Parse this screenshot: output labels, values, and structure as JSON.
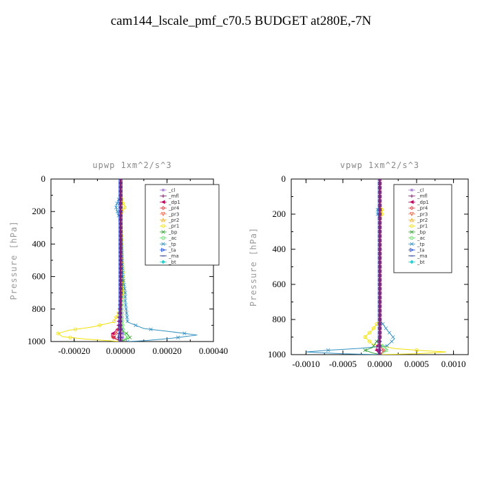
{
  "title": "cam144_lscale_pmf_c70.5  BUDGET at280E,-7N",
  "colors": {
    "_cl": "#a070d0",
    "_mfl": "#802070",
    "_dp1": "#c00060",
    "_pr4": "#e04040",
    "_pr3": "#f06040",
    "_pr2": "#f0b020",
    "_pr1": "#f0e000",
    "_bp": "#30a030",
    "_ac": "#60e060",
    "_tp": "#3090c0",
    "_ta": "#2050e0",
    "_ma": "#203090",
    "_bt": "#20d0d0"
  },
  "chart_data": [
    {
      "type": "line",
      "title": "upwp  1xm^2/s^3",
      "ylabel": "Pressure [hPa]",
      "xlabel": "",
      "xlim": [
        -0.0003,
        0.0004
      ],
      "ylim": [
        1000,
        0
      ],
      "xticks": [
        -0.0002,
        0.0,
        0.0002,
        0.0004
      ],
      "xtick_labels": [
        "-0.00020",
        "0.00000",
        "0.00020",
        "0.00040"
      ],
      "yticks": [
        0,
        200,
        400,
        600,
        800,
        1000
      ],
      "ytick_labels": [
        "0",
        "200",
        "400",
        "600",
        "800",
        "1000"
      ],
      "legend": [
        "_cl",
        "_mfl",
        "_dp1",
        "_pr4",
        "_pr3",
        "_pr2",
        "_pr1",
        "_bp",
        "_ac",
        "_tp",
        "_ta",
        "_ma",
        "_bt"
      ],
      "legend_position": "top-right",
      "series": [
        {
          "name": "_pr1",
          "x": [
            0,
            0,
            1e-05,
            2e-05,
            1e-05,
            0,
            1e-05,
            1e-05,
            0,
            -3e-05,
            -0.00012,
            -0.00022,
            -0.00027,
            -0.00025,
            -0.00015,
            -5e-05,
            0
          ],
          "y": [
            0,
            100,
            150,
            170,
            190,
            230,
            600,
            700,
            800,
            880,
            910,
            930,
            950,
            970,
            985,
            995,
            1000
          ]
        },
        {
          "name": "_tp",
          "x": [
            0,
            0,
            -1e-05,
            -2e-05,
            -1e-05,
            0,
            1e-05,
            2e-05,
            2e-05,
            3e-05,
            0.0001,
            0.00022,
            0.00033,
            0.00022,
            0.0001,
            3e-05
          ],
          "y": [
            0,
            100,
            130,
            170,
            220,
            260,
            600,
            700,
            750,
            880,
            920,
            940,
            960,
            980,
            995,
            1000
          ]
        },
        {
          "name": "_bp",
          "x": [
            0,
            0,
            0,
            1e-05,
            3e-05,
            4e-05,
            2e-05,
            0
          ],
          "y": [
            0,
            500,
            900,
            935,
            955,
            975,
            990,
            1000
          ]
        },
        {
          "name": "_ac",
          "x": [
            0,
            0,
            1e-05,
            2e-05,
            3e-05,
            1e-05,
            0
          ],
          "y": [
            0,
            600,
            940,
            960,
            975,
            990,
            1000
          ]
        },
        {
          "name": "_dp1",
          "x": [
            0,
            0,
            -1e-05,
            -3e-05,
            -4e-05,
            -3e-05,
            -1e-05,
            0
          ],
          "y": [
            0,
            700,
            920,
            945,
            960,
            975,
            990,
            1000
          ]
        },
        {
          "name": "_pr4",
          "x": [
            0,
            0,
            -2e-05,
            -4e-05,
            -2e-05,
            0
          ],
          "y": [
            0,
            900,
            950,
            968,
            985,
            1000
          ]
        },
        {
          "name": "_mfl",
          "x": [
            0,
            0,
            -1e-05,
            -1e-05,
            0
          ],
          "y": [
            0,
            930,
            960,
            985,
            1000
          ]
        },
        {
          "name": "_cl",
          "x": [
            0,
            0,
            1e-05,
            1e-05,
            0
          ],
          "y": [
            0,
            900,
            950,
            980,
            1000
          ]
        },
        {
          "name": "_ta",
          "x": [
            0,
            0
          ],
          "y": [
            0,
            1000
          ]
        },
        {
          "name": "_ma",
          "x": [
            0,
            0
          ],
          "y": [
            0,
            1000
          ]
        }
      ]
    },
    {
      "type": "line",
      "title": "vpwp  1xm^2/s^3",
      "ylabel": "Pressure [hPa]",
      "xlabel": "",
      "xlim": [
        -0.0012,
        0.0012
      ],
      "ylim": [
        1000,
        0
      ],
      "xticks": [
        -0.001,
        -0.0005,
        0.0,
        0.0005,
        0.001
      ],
      "xtick_labels": [
        "-0.0010",
        "-0.0005",
        "0.0000",
        "0.0005",
        "0.0010"
      ],
      "yticks": [
        0,
        200,
        400,
        600,
        800,
        1000
      ],
      "ytick_labels": [
        "0",
        "200",
        "400",
        "600",
        "800",
        "1000"
      ],
      "legend": [
        "_cl",
        "_mfl",
        "_dp1",
        "_pr4",
        "_pr3",
        "_pr2",
        "_pr1",
        "_bp",
        "_ac",
        "_tp",
        "_ta",
        "_ma",
        "_bt"
      ],
      "legend_position": "top-right",
      "series": [
        {
          "name": "_pr1",
          "x": [
            0,
            0,
            3e-05,
            3e-05,
            0,
            0,
            -0.0001,
            -0.0002,
            -0.0001,
            0.0002,
            0.0005,
            0.0009,
            0.0005,
            0
          ],
          "y": [
            0,
            150,
            170,
            200,
            230,
            800,
            860,
            900,
            940,
            965,
            975,
            985,
            995,
            1000
          ]
        },
        {
          "name": "_tp",
          "x": [
            0,
            0,
            -3e-05,
            -3e-05,
            0,
            0,
            0.0001,
            0.0002,
            0.0001,
            -0.0003,
            -0.0007,
            -0.001,
            -0.0005,
            0
          ],
          "y": [
            0,
            150,
            170,
            200,
            230,
            800,
            860,
            910,
            950,
            965,
            975,
            985,
            995,
            1000
          ]
        },
        {
          "name": "_bp",
          "x": [
            0,
            0,
            -0.0001,
            -0.0002,
            -0.0001,
            0
          ],
          "y": [
            0,
            900,
            960,
            975,
            990,
            1000
          ]
        },
        {
          "name": "_ac",
          "x": [
            0,
            0,
            0.0001,
            5e-05,
            0
          ],
          "y": [
            0,
            940,
            970,
            990,
            1000
          ]
        },
        {
          "name": "_dp1",
          "x": [
            0,
            0,
            -3e-05,
            -5e-05,
            -2e-05,
            0
          ],
          "y": [
            0,
            900,
            950,
            970,
            990,
            1000
          ]
        },
        {
          "name": "_pr4",
          "x": [
            0,
            0,
            5e-05,
            3e-05,
            0
          ],
          "y": [
            0,
            950,
            975,
            990,
            1000
          ]
        },
        {
          "name": "_mfl",
          "x": [
            0,
            0,
            -2e-05,
            0
          ],
          "y": [
            0,
            960,
            985,
            1000
          ]
        },
        {
          "name": "_cl",
          "x": [
            0,
            0
          ],
          "y": [
            0,
            1000
          ]
        },
        {
          "name": "_ta",
          "x": [
            0,
            0
          ],
          "y": [
            0,
            1000
          ]
        }
      ]
    }
  ]
}
